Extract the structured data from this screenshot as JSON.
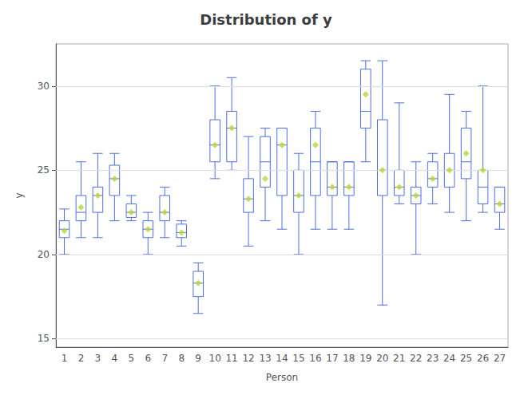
{
  "chart_data": {
    "type": "box",
    "title": "Distribution of y",
    "x_label": "Person",
    "y_label": "y",
    "categories": [
      "1",
      "2",
      "3",
      "4",
      "5",
      "6",
      "7",
      "8",
      "9",
      "10",
      "11",
      "12",
      "13",
      "14",
      "15",
      "16",
      "17",
      "18",
      "19",
      "20",
      "21",
      "22",
      "23",
      "24",
      "25",
      "26",
      "27"
    ],
    "series": [
      {
        "type": "boxplot",
        "values": [
          [
            20.0,
            21.0,
            21.5,
            22.0,
            22.7
          ],
          [
            21.0,
            22.0,
            22.5,
            23.5,
            25.5
          ],
          [
            21.0,
            22.5,
            23.5,
            24.0,
            26.0
          ],
          [
            22.0,
            23.5,
            24.5,
            25.3,
            26.0
          ],
          [
            22.0,
            22.2,
            22.5,
            23.0,
            23.5
          ],
          [
            20.0,
            21.0,
            21.5,
            22.0,
            22.5
          ],
          [
            21.0,
            22.0,
            22.5,
            23.5,
            24.0
          ],
          [
            20.5,
            21.0,
            21.3,
            21.8,
            22.0
          ],
          [
            16.5,
            17.5,
            18.3,
            19.0,
            19.5
          ],
          [
            24.5,
            25.5,
            26.5,
            28.0,
            30.0
          ],
          [
            25.0,
            25.5,
            27.5,
            28.5,
            30.5
          ],
          [
            20.5,
            22.5,
            23.3,
            24.5,
            27.0
          ],
          [
            22.0,
            24.0,
            25.5,
            27.0,
            27.5
          ],
          [
            21.5,
            23.5,
            26.5,
            27.5,
            27.5
          ],
          [
            20.0,
            22.5,
            23.5,
            25.0,
            26.0
          ],
          [
            21.5,
            23.5,
            25.5,
            27.5,
            28.5
          ],
          [
            21.5,
            23.5,
            24.0,
            25.5,
            25.5
          ],
          [
            21.5,
            23.5,
            24.0,
            25.5,
            25.5
          ],
          [
            25.5,
            27.5,
            28.5,
            31.0,
            31.5
          ],
          [
            17.0,
            23.5,
            25.0,
            28.0,
            31.5
          ],
          [
            23.0,
            23.5,
            24.0,
            25.0,
            29.0
          ],
          [
            20.0,
            23.0,
            23.5,
            24.0,
            25.5
          ],
          [
            23.0,
            24.0,
            24.5,
            25.5,
            26.0
          ],
          [
            22.5,
            24.0,
            25.0,
            26.0,
            29.5
          ],
          [
            22.0,
            24.5,
            25.5,
            27.5,
            28.5
          ],
          [
            22.5,
            23.0,
            24.0,
            25.0,
            30.0
          ],
          [
            21.5,
            22.5,
            23.0,
            24.0,
            24.0
          ]
        ]
      },
      {
        "type": "scatter",
        "marker": "diamond",
        "values": [
          21.4,
          22.8,
          23.5,
          24.5,
          22.5,
          21.5,
          22.5,
          21.3,
          18.3,
          26.5,
          27.5,
          23.3,
          24.5,
          26.5,
          23.5,
          26.5,
          24.0,
          24.0,
          29.5,
          25.0,
          24.0,
          23.5,
          24.5,
          25.0,
          26.0,
          25.0,
          23.0
        ]
      }
    ],
    "ylim": [
      14.5,
      32.5
    ],
    "yticks": [
      15,
      20,
      25,
      30
    ],
    "grid": true
  }
}
